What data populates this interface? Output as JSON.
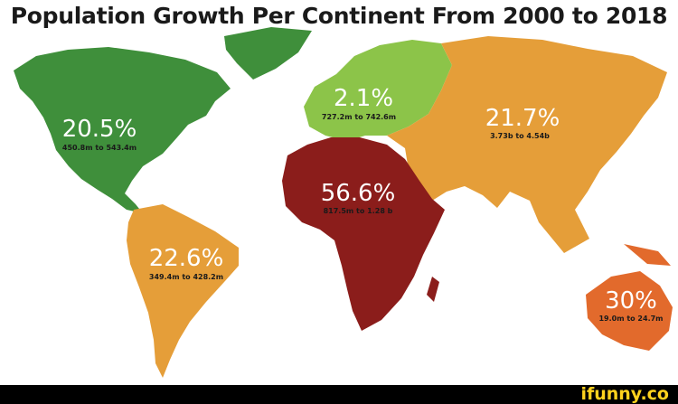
{
  "title": "Population Growth Per Continent From 2000 to 2018",
  "continents": {
    "north_america": {
      "percent": "20.5%",
      "range": "450.8m to 543.4m",
      "color": "#3f8f3b"
    },
    "south_america": {
      "percent": "22.6%",
      "range": "349.4m to 428.2m",
      "color": "#e59e39"
    },
    "europe": {
      "percent": "2.1%",
      "range": "727.2m to 742.6m",
      "color": "#8cc449"
    },
    "africa": {
      "percent": "56.6%",
      "range": "817.5m to 1.28 b",
      "color": "#8b1d1b"
    },
    "asia": {
      "percent": "21.7%",
      "range": "3.73b to 4.54b",
      "color": "#e59e39"
    },
    "oceania": {
      "percent": "30%",
      "range": "19.0m to 24.7m",
      "color": "#e26a2c"
    }
  },
  "greenland_color": "#3f8f3b",
  "footer": {
    "brand": "ifunny.co",
    "brand_color": "#ffd21e"
  }
}
